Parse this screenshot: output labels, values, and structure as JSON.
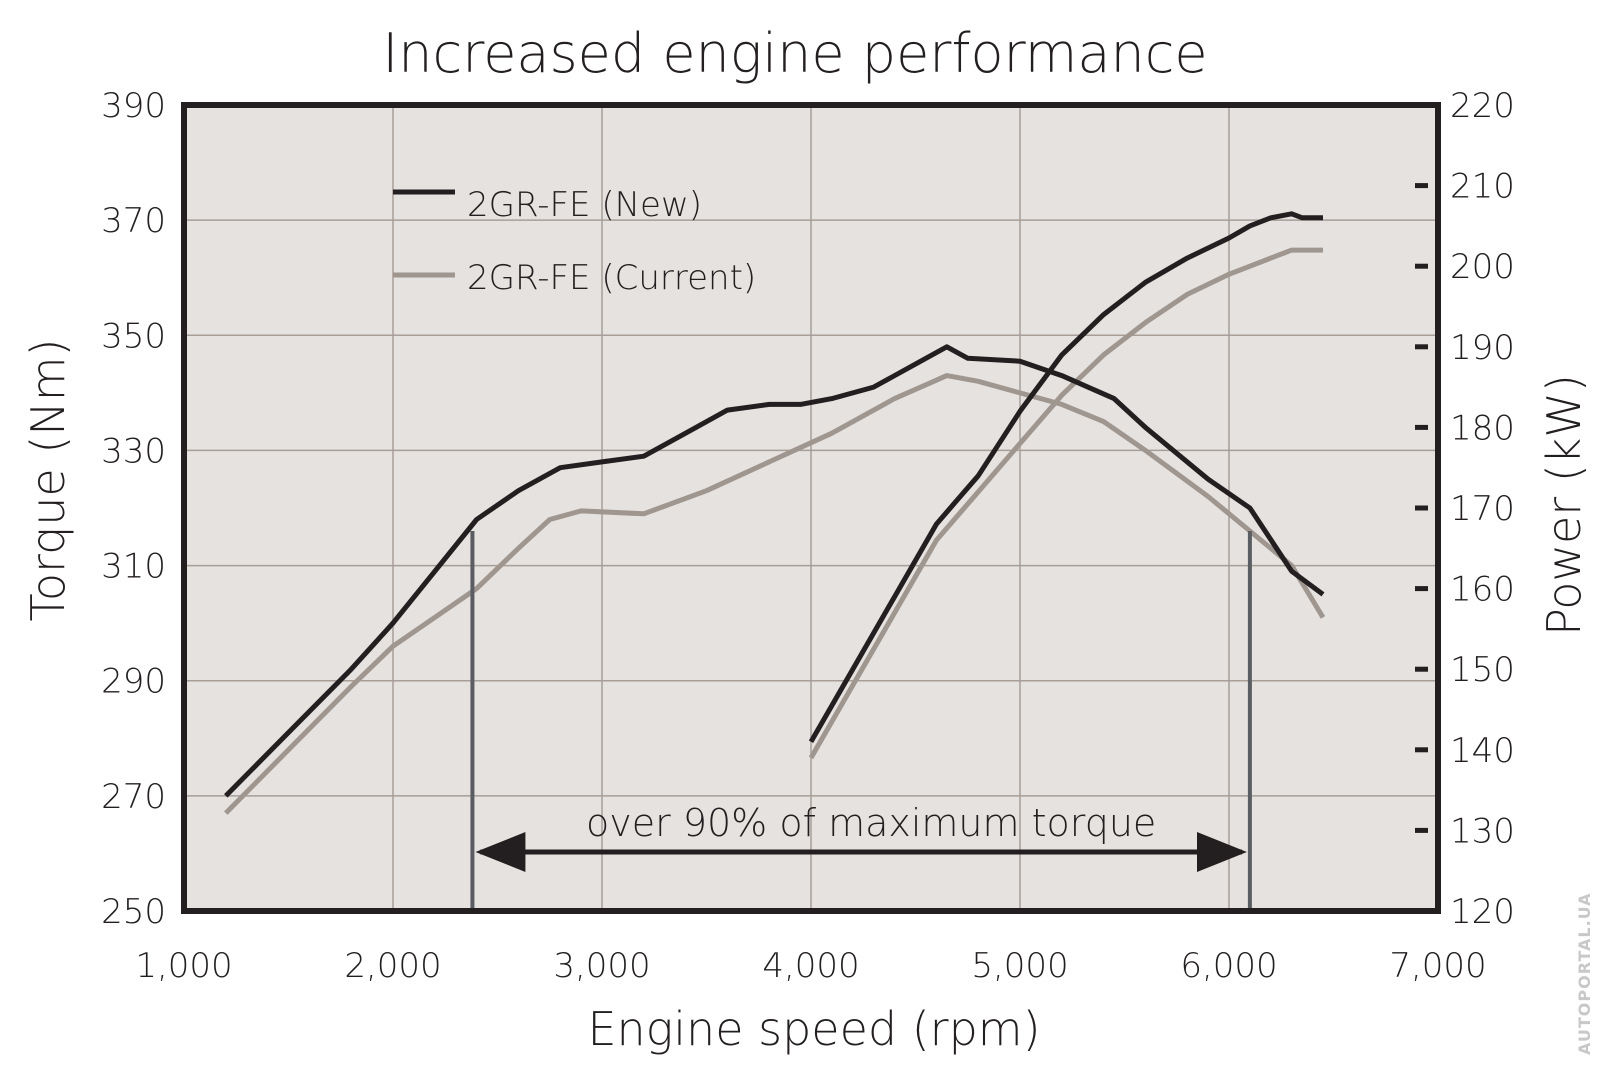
{
  "watermark": "AUTOPORTAL.UA",
  "chart_data": {
    "type": "line",
    "title": "Increased engine performance",
    "xlabel": "Engine speed (rpm)",
    "ylabel_left": "Torque (Nm)",
    "ylabel_right": "Power (kW)",
    "xlim": [
      1000,
      7000
    ],
    "ylim_left": [
      250,
      390
    ],
    "ylim_right": [
      120,
      220
    ],
    "x_ticks": [
      "1,000",
      "2,000",
      "3,000",
      "4,000",
      "5,000",
      "6,000",
      "7,000"
    ],
    "y_left_ticks": [
      "250",
      "270",
      "290",
      "310",
      "330",
      "350",
      "370",
      "390"
    ],
    "y_right_ticks": [
      "120",
      "130",
      "140",
      "150",
      "160",
      "170",
      "180",
      "190",
      "200",
      "210",
      "220"
    ],
    "grid": true,
    "legend_position": "top-left",
    "colors": {
      "new": "#231f20",
      "current": "#a09690",
      "plot_bg": "#e5e2df",
      "grid": "#a89e98",
      "marker_line": "#5a5e62"
    },
    "series": [
      {
        "name": "2GR-FE (New)",
        "key": "new",
        "axis": "left",
        "metric": "torque",
        "x": [
          1200,
          1500,
          1800,
          2000,
          2200,
          2400,
          2600,
          2800,
          3000,
          3200,
          3400,
          3600,
          3800,
          3950,
          4100,
          4300,
          4500,
          4650,
          4750,
          5000,
          5200,
          5450,
          5600,
          5900,
          6100,
          6300,
          6450
        ],
        "y": [
          270,
          281,
          292,
          300,
          309,
          318,
          323,
          327,
          328,
          329,
          333,
          337,
          338,
          338,
          339,
          341,
          345,
          348,
          346,
          345.5,
          343,
          339,
          334,
          325,
          320,
          309,
          305
        ]
      },
      {
        "name": "2GR-FE (Current)",
        "key": "current",
        "axis": "left",
        "metric": "torque",
        "x": [
          1200,
          1500,
          1800,
          2000,
          2200,
          2400,
          2600,
          2750,
          2900,
          3200,
          3500,
          3800,
          4100,
          4400,
          4650,
          4800,
          5000,
          5200,
          5400,
          5600,
          5900,
          6100,
          6300,
          6450
        ],
        "y": [
          267,
          278,
          289,
          296,
          301,
          306,
          313,
          318,
          319.5,
          319,
          323,
          328,
          333,
          339,
          343,
          342,
          340,
          338,
          335,
          330,
          322,
          316,
          310,
          301
        ]
      },
      {
        "name": "2GR-FE (New)",
        "key": "new",
        "axis": "right",
        "metric": "power",
        "x": [
          4000,
          4200,
          4400,
          4600,
          4700,
          4800,
          5000,
          5200,
          5400,
          5600,
          5800,
          6000,
          6100,
          6200,
          6300,
          6350,
          6450
        ],
        "y": [
          141,
          150,
          159,
          168,
          171,
          174,
          182,
          189,
          194,
          198,
          201,
          203.5,
          205,
          206,
          206.5,
          206,
          206
        ]
      },
      {
        "name": "2GR-FE (Current)",
        "key": "current",
        "axis": "right",
        "metric": "power",
        "x": [
          4000,
          4200,
          4400,
          4600,
          4800,
          5000,
          5200,
          5400,
          5600,
          5800,
          6000,
          6200,
          6300,
          6450
        ],
        "y": [
          139,
          148,
          157,
          166,
          172,
          178,
          184,
          189,
          193,
          196.5,
          199,
          201,
          202,
          202
        ]
      }
    ],
    "range_markers": [
      2380,
      6100
    ],
    "annotation": "over 90% of maximum torque"
  }
}
